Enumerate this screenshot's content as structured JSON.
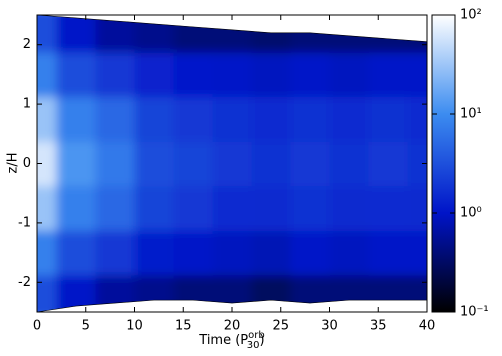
{
  "chart_data": {
    "type": "heatmap",
    "xlabel": {
      "text": "Time (P",
      "sup": "orb",
      "sub": "30",
      "close": ")"
    },
    "ylabel": "z/H",
    "x": [
      0,
      4,
      8,
      12,
      16,
      20,
      24,
      28,
      32,
      36,
      40
    ],
    "z": [
      -2.25,
      -1.5,
      -0.75,
      0,
      0.75,
      1.5,
      2.25
    ],
    "values": [
      [
        3,
        1,
        0.6,
        0.5,
        0.4,
        0.4,
        0.3,
        0.4,
        0.4,
        0.4,
        0.4
      ],
      [
        8,
        3,
        2,
        1.2,
        1,
        0.9,
        0.8,
        1,
        0.9,
        1,
        1
      ],
      [
        30,
        8,
        5,
        2.5,
        2,
        1.6,
        1.5,
        1.8,
        1.5,
        1.6,
        1.5
      ],
      [
        60,
        12,
        7,
        3,
        2.5,
        2,
        1.8,
        2,
        1.8,
        2,
        1.8
      ],
      [
        30,
        8,
        5,
        2.5,
        2,
        1.8,
        1.6,
        1.8,
        1.6,
        1.7,
        1.6
      ],
      [
        8,
        3,
        2,
        1.3,
        1.1,
        1,
        0.9,
        1,
        0.9,
        1,
        1
      ],
      [
        3,
        1,
        0.6,
        0.5,
        0.4,
        0.4,
        0.35,
        0.4,
        0.4,
        0.4,
        0.4
      ]
    ],
    "upper_boundary": [
      2.5,
      2.45,
      2.4,
      2.35,
      2.3,
      2.25,
      2.2,
      2.2,
      2.15,
      2.1,
      2.05
    ],
    "lower_boundary": [
      -2.5,
      -2.4,
      -2.35,
      -2.3,
      -2.3,
      -2.35,
      -2.3,
      -2.35,
      -2.3,
      -2.3,
      -2.3
    ],
    "xlim": [
      0,
      40
    ],
    "xticks": [
      0,
      5,
      10,
      15,
      20,
      25,
      30,
      35,
      40
    ],
    "ylim": [
      -2.5,
      2.5
    ],
    "yticks": [
      -2,
      -1,
      0,
      1,
      2
    ],
    "color_scale": "log",
    "clim": [
      0.1,
      100
    ],
    "cticks": [
      {
        "value": 0.1,
        "label": "10⁻¹"
      },
      {
        "value": 1,
        "label": "10⁰"
      },
      {
        "value": 10,
        "label": "10¹"
      },
      {
        "value": 100,
        "label": "10²"
      }
    ],
    "colormap": [
      "#000000",
      "#0014c8",
      "#3c8cf0",
      "#ffffff"
    ]
  }
}
